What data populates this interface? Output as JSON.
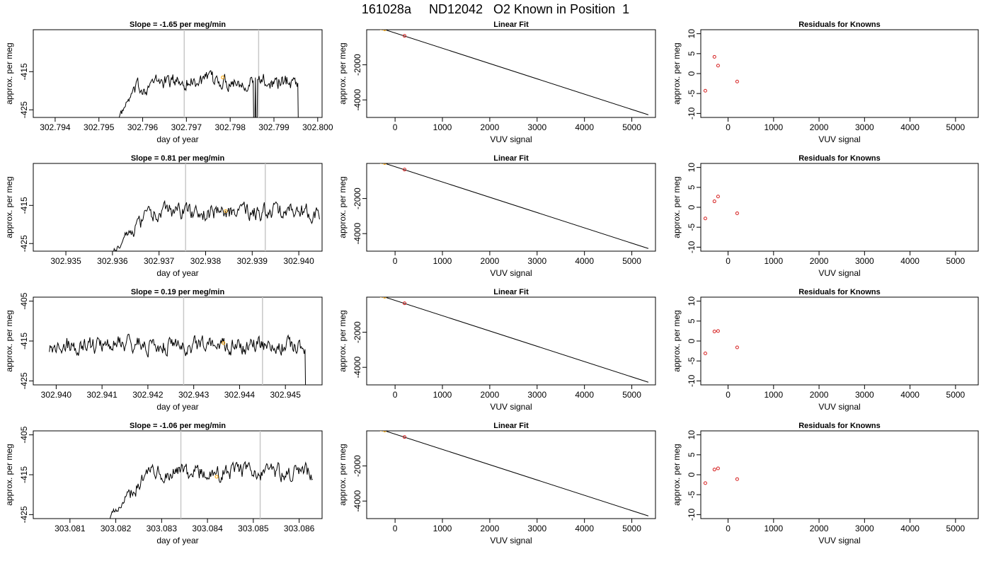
{
  "title": "161028a     ND12042   O2 Known in Position  1",
  "styles": {
    "trace_color": "#000000",
    "marker_orange": "#ffa500",
    "marker_red": "#d62020",
    "vline_color": "#c8c8c8"
  },
  "chart_data": [
    {
      "type": "line",
      "row": 1,
      "title": "Slope =  -1.65  per meg/min",
      "xlabel": "day of year",
      "ylabel": "approx. per meg",
      "xlim": [
        302.7935,
        302.8001
      ],
      "ylim": [
        -427,
        -404
      ],
      "xticks": [
        302.794,
        302.795,
        302.796,
        302.797,
        302.798,
        302.799,
        302.8
      ],
      "xtick_labels": [
        "302.794",
        "302.795",
        "302.796",
        "302.797",
        "302.798",
        "302.799",
        "302.800"
      ],
      "yticks": [
        -415,
        -425
      ],
      "ytick_labels": [
        "-415",
        "-425"
      ],
      "vlines": [
        302.79695,
        302.79865
      ],
      "marker": {
        "x": 302.79783,
        "y": -416.5
      },
      "trace": {
        "start": 302.79542,
        "end": 302.79965,
        "step": 1.67e-05,
        "baseline": -417.5,
        "rise_start": 302.79542,
        "rise_end": 302.7958,
        "rise_from": -428,
        "rise_to": -420,
        "end_drop": 302.79955,
        "dips": [
          302.79855,
          302.7986
        ],
        "noise": 1.5
      }
    },
    {
      "type": "line",
      "row": 1,
      "title": "Linear Fit",
      "xlabel": "VUV signal",
      "ylabel": "approx. per meg",
      "xlim": [
        -600,
        5500
      ],
      "ylim": [
        -5000,
        0
      ],
      "xticks": [
        0,
        1000,
        2000,
        3000,
        4000,
        5000
      ],
      "xtick_labels": [
        "0",
        "1000",
        "2000",
        "3000",
        "4000",
        "5000"
      ],
      "yticks": [
        -2000,
        -4000
      ],
      "ytick_labels": [
        "-2000",
        "-4000"
      ],
      "line": [
        [
          -500,
          250
        ],
        [
          5350,
          -4850
        ]
      ],
      "points": [
        {
          "x": -500,
          "y": 250
        },
        {
          "x": -300,
          "y": 80
        },
        {
          "x": -220,
          "y": 20
        },
        {
          "x": 200,
          "y": -350
        }
      ]
    },
    {
      "type": "scatter",
      "row": 1,
      "title": "Residuals for Knowns",
      "xlabel": "VUV signal",
      "ylabel": "approx. per meg",
      "xlim": [
        -600,
        5500
      ],
      "ylim": [
        -11,
        11
      ],
      "xticks": [
        0,
        1000,
        2000,
        3000,
        4000,
        5000
      ],
      "xtick_labels": [
        "0",
        "1000",
        "2000",
        "3000",
        "4000",
        "5000"
      ],
      "yticks": [
        -10,
        -5,
        0,
        5,
        10
      ],
      "ytick_labels": [
        "-10",
        "-5",
        "0",
        "5",
        "10"
      ],
      "points": [
        {
          "x": -500,
          "y": -4.3
        },
        {
          "x": -300,
          "y": 4.2
        },
        {
          "x": -220,
          "y": 2.0
        },
        {
          "x": 200,
          "y": -2.0
        }
      ]
    },
    {
      "type": "line",
      "row": 2,
      "title": "Slope =  0.81  per meg/min",
      "xlabel": "day of year",
      "ylabel": "approx. per meg",
      "xlim": [
        302.9343,
        302.9405
      ],
      "ylim": [
        -427,
        -404
      ],
      "xticks": [
        302.935,
        302.936,
        302.937,
        302.938,
        302.939,
        302.94
      ],
      "xtick_labels": [
        "302.935",
        "302.936",
        "302.937",
        "302.938",
        "302.939",
        "302.940"
      ],
      "yticks": [
        -415,
        -425
      ],
      "ytick_labels": [
        "-415",
        "-425"
      ],
      "vlines": [
        302.93757,
        302.93928
      ],
      "marker": {
        "x": 302.93843,
        "y": -416.5
      },
      "trace": {
        "start": 302.93597,
        "end": 302.94045,
        "step": 1.67e-05,
        "baseline": -416.8,
        "rise_start": 302.93597,
        "rise_end": 302.9364,
        "rise_from": -428,
        "rise_to": -421,
        "end_drop": null,
        "dips": [],
        "noise": 1.6
      }
    },
    {
      "type": "line",
      "row": 2,
      "title": "Linear Fit",
      "xlabel": "VUV signal",
      "ylabel": "approx. per meg",
      "xlim": [
        -600,
        5500
      ],
      "ylim": [
        -5000,
        0
      ],
      "xticks": [
        0,
        1000,
        2000,
        3000,
        4000,
        5000
      ],
      "xtick_labels": [
        "0",
        "1000",
        "2000",
        "3000",
        "4000",
        "5000"
      ],
      "yticks": [
        -2000,
        -4000
      ],
      "ytick_labels": [
        "-2000",
        "-4000"
      ],
      "line": [
        [
          -500,
          250
        ],
        [
          5350,
          -4850
        ]
      ],
      "points": [
        {
          "x": -500,
          "y": 250
        },
        {
          "x": -300,
          "y": 80
        },
        {
          "x": -220,
          "y": 20
        },
        {
          "x": 200,
          "y": -350
        }
      ]
    },
    {
      "type": "scatter",
      "row": 2,
      "title": "Residuals for Knowns",
      "xlabel": "VUV signal",
      "ylabel": "approx. per meg",
      "xlim": [
        -600,
        5500
      ],
      "ylim": [
        -11,
        11
      ],
      "xticks": [
        0,
        1000,
        2000,
        3000,
        4000,
        5000
      ],
      "xtick_labels": [
        "0",
        "1000",
        "2000",
        "3000",
        "4000",
        "5000"
      ],
      "yticks": [
        -10,
        -5,
        0,
        5,
        10
      ],
      "ytick_labels": [
        "-10",
        "-5",
        "0",
        "5",
        "10"
      ],
      "points": [
        {
          "x": -500,
          "y": -2.8
        },
        {
          "x": -300,
          "y": 1.5
        },
        {
          "x": -220,
          "y": 2.7
        },
        {
          "x": 200,
          "y": -1.5
        }
      ]
    },
    {
      "type": "line",
      "row": 3,
      "title": "Slope =  0.19  per meg/min",
      "xlabel": "day of year",
      "ylabel": "approx. per meg",
      "xlim": [
        302.9395,
        302.9458
      ],
      "ylim": [
        -426,
        -404
      ],
      "xticks": [
        302.94,
        302.941,
        302.942,
        302.943,
        302.944,
        302.945
      ],
      "xtick_labels": [
        "302.940",
        "302.941",
        "302.942",
        "302.943",
        "302.944",
        "302.945"
      ],
      "yticks": [
        -405,
        -415,
        -425
      ],
      "ytick_labels": [
        "-405",
        "-415",
        "-425"
      ],
      "vlines": [
        302.94278,
        302.9445
      ],
      "marker": {
        "x": 302.94365,
        "y": -415.5
      },
      "trace": {
        "start": 302.93985,
        "end": 302.94553,
        "step": 1.67e-05,
        "baseline": -416,
        "rise_start": null,
        "rise_end": null,
        "rise_from": null,
        "rise_to": null,
        "end_drop": 302.94543,
        "dips": [],
        "noise": 1.6
      }
    },
    {
      "type": "line",
      "row": 3,
      "title": "Linear Fit",
      "xlabel": "VUV signal",
      "ylabel": "approx. per meg",
      "xlim": [
        -600,
        5500
      ],
      "ylim": [
        -5000,
        0
      ],
      "xticks": [
        0,
        1000,
        2000,
        3000,
        4000,
        5000
      ],
      "xtick_labels": [
        "0",
        "1000",
        "2000",
        "3000",
        "4000",
        "5000"
      ],
      "yticks": [
        -2000,
        -4000
      ],
      "ytick_labels": [
        "-2000",
        "-4000"
      ],
      "line": [
        [
          -500,
          250
        ],
        [
          5350,
          -4850
        ]
      ],
      "points": [
        {
          "x": -500,
          "y": 250
        },
        {
          "x": -300,
          "y": 80
        },
        {
          "x": -220,
          "y": 20
        },
        {
          "x": 200,
          "y": -350
        }
      ]
    },
    {
      "type": "scatter",
      "row": 3,
      "title": "Residuals for Knowns",
      "xlabel": "VUV signal",
      "ylabel": "approx. per meg",
      "xlim": [
        -600,
        5500
      ],
      "ylim": [
        -11,
        11
      ],
      "xticks": [
        0,
        1000,
        2000,
        3000,
        4000,
        5000
      ],
      "xtick_labels": [
        "0",
        "1000",
        "2000",
        "3000",
        "4000",
        "5000"
      ],
      "yticks": [
        -10,
        -5,
        0,
        5,
        10
      ],
      "ytick_labels": [
        "-10",
        "-5",
        "0",
        "5",
        "10"
      ],
      "points": [
        {
          "x": -500,
          "y": -3.1
        },
        {
          "x": -300,
          "y": 2.4
        },
        {
          "x": -220,
          "y": 2.5
        },
        {
          "x": 200,
          "y": -1.6
        }
      ]
    },
    {
      "type": "line",
      "row": 4,
      "title": "Slope =  -1.06  per meg/min",
      "xlabel": "day of year",
      "ylabel": "approx. per meg",
      "xlim": [
        303.0802,
        303.0865
      ],
      "ylim": [
        -426,
        -404
      ],
      "xticks": [
        303.081,
        303.082,
        303.083,
        303.084,
        303.085,
        303.086
      ],
      "xtick_labels": [
        "303.081",
        "303.082",
        "303.083",
        "303.084",
        "303.085",
        "303.086"
      ],
      "yticks": [
        -405,
        -415,
        -425
      ],
      "ytick_labels": [
        "-405",
        "-415",
        "-425"
      ],
      "vlines": [
        303.08342,
        303.08515
      ],
      "marker": {
        "x": 303.0842,
        "y": -415.5
      },
      "trace": {
        "start": 303.0818,
        "end": 303.0863,
        "step": 1.67e-05,
        "baseline": -414.5,
        "rise_start": 303.0818,
        "rise_end": 303.08225,
        "rise_from": -427,
        "rise_to": -420,
        "end_drop": null,
        "dips": [],
        "noise": 1.5
      }
    },
    {
      "type": "line",
      "row": 4,
      "title": "Linear Fit",
      "xlabel": "VUV signal",
      "ylabel": "approx. per meg",
      "xlim": [
        -600,
        5500
      ],
      "ylim": [
        -5000,
        0
      ],
      "xticks": [
        0,
        1000,
        2000,
        3000,
        4000,
        5000
      ],
      "xtick_labels": [
        "0",
        "1000",
        "2000",
        "3000",
        "4000",
        "5000"
      ],
      "yticks": [
        -2000,
        -4000
      ],
      "ytick_labels": [
        "-2000",
        "-4000"
      ],
      "line": [
        [
          -500,
          250
        ],
        [
          5350,
          -4850
        ]
      ],
      "points": [
        {
          "x": -500,
          "y": 250
        },
        {
          "x": -300,
          "y": 80
        },
        {
          "x": -220,
          "y": 20
        },
        {
          "x": 200,
          "y": -350
        }
      ]
    },
    {
      "type": "scatter",
      "row": 4,
      "title": "Residuals for Knowns",
      "xlabel": "VUV signal",
      "ylabel": "approx. per meg",
      "xlim": [
        -600,
        5500
      ],
      "ylim": [
        -11,
        11
      ],
      "xticks": [
        0,
        1000,
        2000,
        3000,
        4000,
        5000
      ],
      "xtick_labels": [
        "0",
        "1000",
        "2000",
        "3000",
        "4000",
        "5000"
      ],
      "yticks": [
        -10,
        -5,
        0,
        5,
        10
      ],
      "ytick_labels": [
        "-10",
        "-5",
        "0",
        "5",
        "10"
      ],
      "points": [
        {
          "x": -500,
          "y": -2.1
        },
        {
          "x": -300,
          "y": 1.3
        },
        {
          "x": -220,
          "y": 1.6
        },
        {
          "x": 200,
          "y": -1.1
        }
      ]
    }
  ]
}
